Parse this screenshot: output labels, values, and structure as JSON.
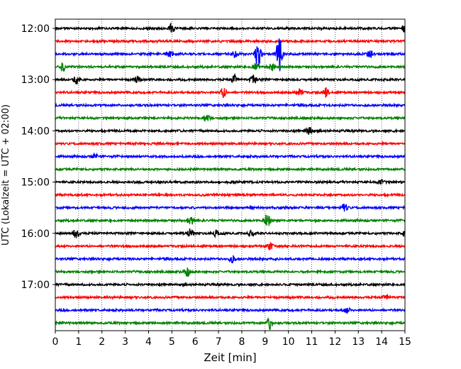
{
  "chart_data": {
    "type": "line",
    "xlabel": "Zeit  [min]",
    "ylabel": "UTC (Lokalzeit = UTC + 02:00)",
    "xlim": [
      0,
      15
    ],
    "x_ticks": [
      0,
      1,
      2,
      3,
      4,
      5,
      6,
      7,
      8,
      9,
      10,
      11,
      12,
      13,
      14,
      15
    ],
    "y_tick_labels": [
      "12:00",
      "13:00",
      "14:00",
      "15:00",
      "16:00",
      "17:00"
    ],
    "grid": "vertical dotted",
    "trace_interval_min": 15,
    "trace_colors": [
      "#000000",
      "#ff0000",
      "#0000ff",
      "#008000"
    ],
    "series": [
      {
        "start": "12:00",
        "color": "#000000",
        "events": [
          [
            5.0,
            6
          ],
          [
            15.0,
            6
          ]
        ]
      },
      {
        "start": "12:15",
        "color": "#ff0000",
        "events": []
      },
      {
        "start": "12:30",
        "color": "#0000ff",
        "events": [
          [
            4.9,
            5
          ],
          [
            7.7,
            5
          ],
          [
            8.7,
            18
          ],
          [
            9.6,
            26
          ],
          [
            13.5,
            5
          ]
        ]
      },
      {
        "start": "12:45",
        "color": "#008000",
        "events": [
          [
            0.3,
            6
          ],
          [
            8.6,
            7
          ],
          [
            9.3,
            6
          ]
        ]
      },
      {
        "start": "13:00",
        "color": "#000000",
        "events": [
          [
            0.9,
            6
          ],
          [
            3.5,
            5
          ],
          [
            7.7,
            6
          ],
          [
            8.5,
            6
          ]
        ]
      },
      {
        "start": "13:15",
        "color": "#ff0000",
        "events": [
          [
            7.2,
            7
          ],
          [
            10.5,
            7
          ],
          [
            11.6,
            6
          ]
        ]
      },
      {
        "start": "13:30",
        "color": "#0000ff",
        "events": []
      },
      {
        "start": "13:45",
        "color": "#008000",
        "events": [
          [
            6.5,
            5
          ]
        ]
      },
      {
        "start": "14:00",
        "color": "#000000",
        "events": [
          [
            10.9,
            7
          ]
        ]
      },
      {
        "start": "14:15",
        "color": "#ff0000",
        "events": []
      },
      {
        "start": "14:30",
        "color": "#0000ff",
        "events": [
          [
            1.7,
            4
          ]
        ]
      },
      {
        "start": "14:45",
        "color": "#008000",
        "events": []
      },
      {
        "start": "15:00",
        "color": "#000000",
        "events": [
          [
            14.0,
            4
          ]
        ]
      },
      {
        "start": "15:15",
        "color": "#ff0000",
        "events": []
      },
      {
        "start": "15:30",
        "color": "#0000ff",
        "events": [
          [
            12.4,
            7
          ]
        ]
      },
      {
        "start": "15:45",
        "color": "#008000",
        "events": [
          [
            5.8,
            7
          ],
          [
            9.1,
            10
          ]
        ]
      },
      {
        "start": "16:00",
        "color": "#000000",
        "events": [
          [
            0.9,
            7
          ],
          [
            5.8,
            6
          ],
          [
            6.9,
            5
          ],
          [
            8.4,
            4
          ],
          [
            15.0,
            5
          ]
        ]
      },
      {
        "start": "16:15",
        "color": "#ff0000",
        "events": [
          [
            9.2,
            5
          ]
        ]
      },
      {
        "start": "16:30",
        "color": "#0000ff",
        "events": [
          [
            7.6,
            5
          ]
        ]
      },
      {
        "start": "16:45",
        "color": "#008000",
        "events": [
          [
            5.7,
            6
          ]
        ]
      },
      {
        "start": "17:00",
        "color": "#000000",
        "events": []
      },
      {
        "start": "17:15",
        "color": "#ff0000",
        "events": [
          [
            14.2,
            4
          ]
        ]
      },
      {
        "start": "17:30",
        "color": "#0000ff",
        "events": [
          [
            12.5,
            4
          ]
        ]
      },
      {
        "start": "17:45",
        "color": "#008000",
        "events": [
          [
            9.2,
            9
          ]
        ]
      }
    ]
  }
}
